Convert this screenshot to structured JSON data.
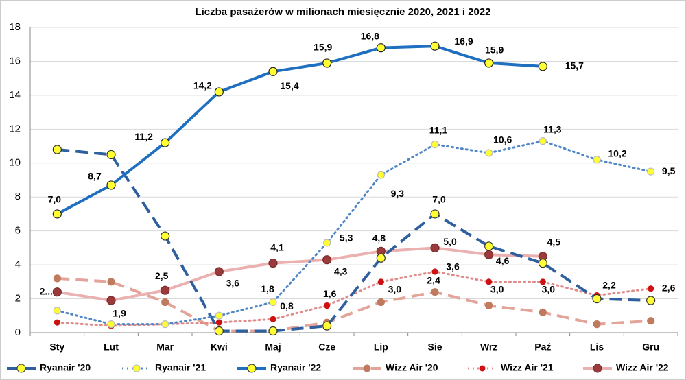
{
  "chart_data": {
    "type": "line",
    "title": "Liczba pasażerów w milionach miesięcznie 2020, 2021 i 2022",
    "categories": [
      "Sty",
      "Lut",
      "Mar",
      "Kwi",
      "Maj",
      "Cze",
      "Lip",
      "Sie",
      "Wrz",
      "Paź",
      "Lis",
      "Gru"
    ],
    "ylim": [
      0,
      18
    ],
    "yticks": [
      0,
      2,
      4,
      6,
      8,
      10,
      12,
      14,
      16,
      18
    ],
    "grid": true,
    "legend": "bottom",
    "series": [
      {
        "name": "Ryanair '20",
        "color": "#2e5f9e",
        "style": "dashed",
        "marker_color": "#ffff33",
        "values": [
          10.8,
          10.5,
          5.7,
          0.1,
          0.1,
          0.4,
          4.4,
          7.0,
          5.1,
          4.1,
          2.0,
          1.9
        ],
        "value_labels": [
          null,
          null,
          null,
          null,
          null,
          null,
          null,
          "7,0",
          null,
          null,
          null,
          null
        ]
      },
      {
        "name": "Ryanair '21",
        "color": "#4f86c6",
        "style": "dotted",
        "marker_color": "#ffff33",
        "values": [
          1.3,
          0.5,
          0.5,
          1.0,
          1.8,
          5.3,
          9.3,
          11.1,
          10.6,
          11.3,
          10.2,
          9.5
        ],
        "value_labels": [
          null,
          null,
          null,
          null,
          "1,8",
          "5,3",
          "9,3",
          "11,1",
          "10,6",
          "11,3",
          "10,2",
          "9,5"
        ]
      },
      {
        "name": "Ryanair '22",
        "color": "#1f6fc0",
        "style": "solid",
        "marker_color": "#ffff33",
        "values": [
          7.0,
          8.7,
          11.2,
          14.2,
          15.4,
          15.9,
          16.8,
          16.9,
          15.9,
          15.7,
          null,
          null
        ],
        "value_labels": [
          "7,0",
          "8,7",
          "11,2",
          "14,2",
          "15,4",
          "15,9",
          "16,8",
          "16,9",
          "15,9",
          "15,7",
          null,
          null
        ]
      },
      {
        "name": "Wizz Air '20",
        "color": "#e3a49a",
        "style": "dashed",
        "marker_color": "#c07a5e",
        "values": [
          3.2,
          3.0,
          1.8,
          0.1,
          0.1,
          0.6,
          1.8,
          2.4,
          1.6,
          1.2,
          0.5,
          0.7
        ],
        "value_labels": [
          null,
          null,
          null,
          null,
          null,
          null,
          null,
          "2,4",
          null,
          null,
          null,
          null
        ]
      },
      {
        "name": "Wizz Air '21",
        "color": "#e08a8a",
        "style": "dotted",
        "marker_color": "#d01010",
        "values": [
          0.6,
          0.4,
          0.5,
          0.6,
          0.8,
          1.6,
          3.0,
          3.6,
          3.0,
          3.0,
          2.2,
          2.6
        ],
        "value_labels": [
          null,
          null,
          null,
          null,
          "0,8",
          "1,6",
          "3,0",
          "3,6",
          "3,0",
          "3,0",
          "2,2",
          "2,6"
        ]
      },
      {
        "name": "Wizz Air '22",
        "color": "#ebb0b0",
        "style": "solid",
        "marker_color": "#9a3a3a",
        "values": [
          2.4,
          1.9,
          2.5,
          3.6,
          4.1,
          4.3,
          4.8,
          5.0,
          4.6,
          4.5,
          null,
          null
        ],
        "value_labels": [
          "2...",
          "1,9",
          "2,5",
          "3,6",
          "4,1",
          "4,3",
          "4,8",
          "5,0",
          "4,6",
          "4,5",
          null,
          null
        ]
      }
    ]
  }
}
